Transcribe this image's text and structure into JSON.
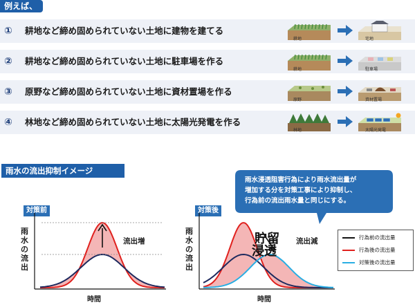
{
  "examples_tag": "例えば、",
  "examples": [
    {
      "num": "①",
      "text": "耕地など締め固められていない土地に建物を建てる",
      "from_label": "耕地",
      "to_label": "宅地"
    },
    {
      "num": "②",
      "text": "耕地など締め固められていない土地に駐車場を作る",
      "from_label": "耕地",
      "to_label": "駐車場"
    },
    {
      "num": "③",
      "text": "原野など締め固められていない土地に資材置場を作る",
      "from_label": "原野",
      "to_label": "資材置場"
    },
    {
      "num": "④",
      "text": "林地など締め固められていない土地に太陽光発電を作る",
      "from_label": "林地",
      "to_label": "太陽光発電"
    }
  ],
  "section_tag": "雨水の流出抑制イメージ",
  "callout_lines": [
    "雨水浸透阻害行為により雨水流出量が",
    "増加する分を対策工事により抑制し、",
    "行為前の流出雨水量と同じにする。"
  ],
  "panel_before": {
    "tag": "対策前",
    "ylabel": "雨水の流出",
    "xlabel": "時間",
    "annotation": "流出増"
  },
  "panel_after": {
    "tag": "対策後",
    "ylabel": "雨水の流出",
    "xlabel": "時間",
    "annotation": "流出減",
    "storage": "貯留",
    "infiltration": "浸透"
  },
  "legend": [
    {
      "label": "行為前の流出量",
      "color": "#111111"
    },
    {
      "label": "行為後の流出量",
      "color": "#e0211e"
    },
    {
      "label": "対策後の流出量",
      "color": "#29aee3"
    }
  ],
  "colors": {
    "brand": "#1f5fa8",
    "row_bg": "#eef1f7",
    "before": "#1e2a5e",
    "after": "#e0211e",
    "mitigated": "#29aee3",
    "fill": "#f4b6b6"
  }
}
